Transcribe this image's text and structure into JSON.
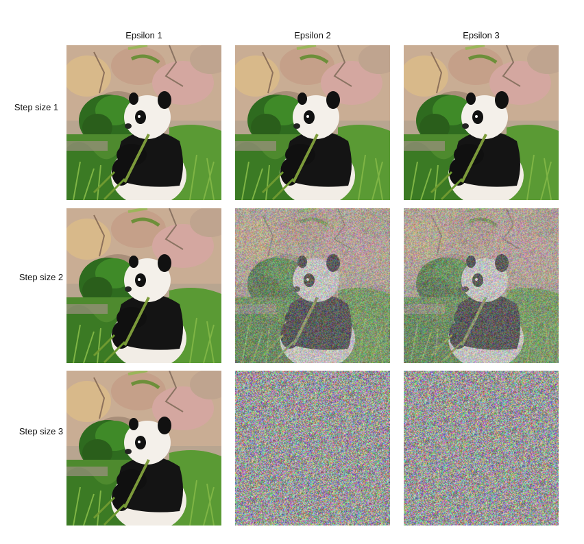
{
  "columns": [
    "Epsilon 1",
    "Epsilon 2",
    "Epsilon 3"
  ],
  "rows": [
    "Step size 1",
    "Step size 2",
    "Step size 3"
  ],
  "cells": [
    [
      "clean",
      "clean",
      "clean"
    ],
    [
      "clean",
      "noisy",
      "noisy"
    ],
    [
      "clean",
      "noise",
      "noise"
    ]
  ]
}
